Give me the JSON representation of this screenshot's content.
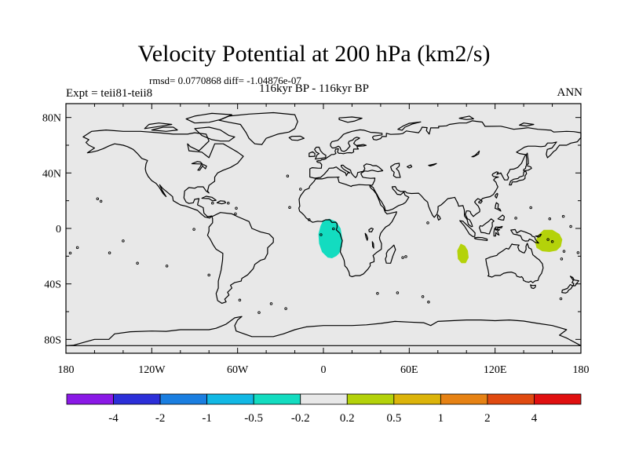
{
  "title": "Velocity Potential at 200 hPa (km2/s)",
  "stats_text": "rmsd= 0.0770868  diff= -1.04876e-07",
  "experiment_text": "Expt = teii81-teii8",
  "period_text": "116kyr BP - 116kyr BP",
  "season_text": "ANN",
  "map": {
    "projection": "cylindrical-equidistant",
    "lon_range": [
      -180,
      180
    ],
    "lat_range": [
      -90,
      90
    ],
    "background_color": "#e8e8e8",
    "coastline_color": "#000000",
    "lat_ticks": [
      {
        "value": 80,
        "label": "80N"
      },
      {
        "value": 40,
        "label": "40N"
      },
      {
        "value": 0,
        "label": "0"
      },
      {
        "value": -40,
        "label": "40S"
      },
      {
        "value": -80,
        "label": "80S"
      }
    ],
    "lon_ticks": [
      {
        "value": -180,
        "label": "180"
      },
      {
        "value": -120,
        "label": "120W"
      },
      {
        "value": -60,
        "label": "60W"
      },
      {
        "value": 0,
        "label": "0"
      },
      {
        "value": 60,
        "label": "60E"
      },
      {
        "value": 120,
        "label": "120E"
      },
      {
        "value": 180,
        "label": "180"
      }
    ],
    "anomalies": [
      {
        "name": "west-africa-negative",
        "category": "-0.5 to -0.2",
        "color": "#13dcc0",
        "outline": [
          [
            -0.5,
            5
          ],
          [
            4,
            7
          ],
          [
            9,
            5
          ],
          [
            12,
            0
          ],
          [
            13,
            -6
          ],
          [
            13,
            -13
          ],
          [
            11,
            -18
          ],
          [
            9,
            -20
          ],
          [
            6,
            -21.5
          ],
          [
            3,
            -21
          ],
          [
            -1,
            -17
          ],
          [
            -3,
            -11
          ],
          [
            -3.5,
            -4
          ],
          [
            -2,
            2
          ]
        ]
      },
      {
        "name": "indian-ocean-positive",
        "category": "0.2 to 0.5",
        "color": "#b4d20a",
        "outline": [
          [
            96,
            -11
          ],
          [
            99,
            -12.5
          ],
          [
            101,
            -16
          ],
          [
            101.5,
            -21
          ],
          [
            99.5,
            -25
          ],
          [
            96.5,
            -25
          ],
          [
            94,
            -22
          ],
          [
            93.5,
            -16
          ]
        ]
      },
      {
        "name": "west-pacific-positive",
        "category": "0.2 to 0.5",
        "color": "#b4d20a",
        "outline": [
          [
            154,
            -1
          ],
          [
            160,
            -1
          ],
          [
            165,
            -4
          ],
          [
            167,
            -8
          ],
          [
            166,
            -13
          ],
          [
            163,
            -16
          ],
          [
            158,
            -17
          ],
          [
            153,
            -16.5
          ],
          [
            149,
            -14
          ],
          [
            148,
            -10
          ],
          [
            150,
            -5
          ]
        ]
      }
    ]
  },
  "colorbar": {
    "segments": [
      {
        "color": "#8a19e6"
      },
      {
        "color": "#2c2fd8"
      },
      {
        "color": "#1a7ee0"
      },
      {
        "color": "#12b8e4"
      },
      {
        "color": "#13dcc0"
      },
      {
        "color": "#e8e8e8"
      },
      {
        "color": "#b4d20a"
      },
      {
        "color": "#dcb40a"
      },
      {
        "color": "#e68214"
      },
      {
        "color": "#e04a10"
      },
      {
        "color": "#e01010"
      }
    ],
    "labels": [
      "-4",
      "-2",
      "-1",
      "-0.5",
      "-0.2",
      "0.2",
      "0.5",
      "1",
      "2",
      "4"
    ]
  }
}
